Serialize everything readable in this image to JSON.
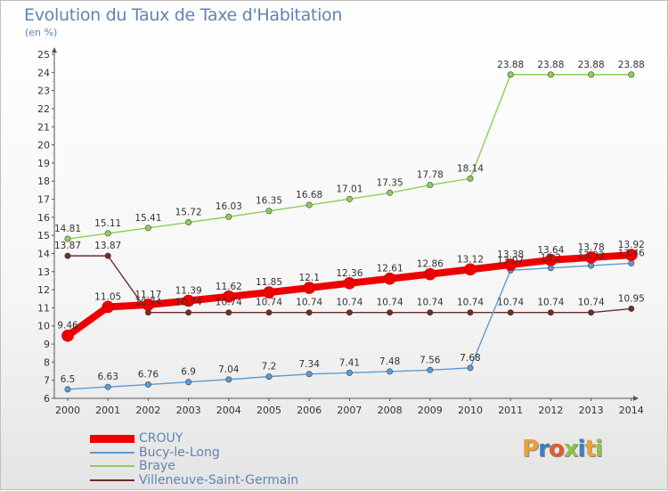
{
  "title": "Evolution du Taux de Taxe d'Habitation",
  "unit": "(en %)",
  "logo": {
    "text": "Proxiti",
    "colors": [
      "#e8a13a",
      "#3a7ec6",
      "#e85a2a",
      "#8bc34a",
      "#3a7ec6",
      "#e8a13a",
      "#8bc34a"
    ]
  },
  "chart_data": {
    "type": "line",
    "title": "Evolution du Taux de Taxe d'Habitation",
    "ylabel": "(en %)",
    "ylim": [
      6,
      25
    ],
    "yticks": [
      6,
      7,
      8,
      9,
      10,
      11,
      12,
      13,
      14,
      15,
      16,
      17,
      18,
      19,
      20,
      21,
      22,
      23,
      24,
      25
    ],
    "x": [
      "2000",
      "2001",
      "2002",
      "2003",
      "2004",
      "2005",
      "2006",
      "2007",
      "2008",
      "2009",
      "2010",
      "2011",
      "2012",
      "2013",
      "2014"
    ],
    "grid": false,
    "legend_position": "bottom-left",
    "series": [
      {
        "name": "CROUY",
        "color": "#ee0000",
        "values": [
          9.46,
          11.05,
          11.17,
          11.39,
          11.62,
          11.85,
          12.1,
          12.36,
          12.61,
          12.86,
          13.12,
          13.38,
          13.64,
          13.78,
          13.92
        ]
      },
      {
        "name": "Bucy-le-Long",
        "color": "#5d9bd3",
        "values": [
          6.5,
          6.63,
          6.76,
          6.9,
          7.04,
          7.2,
          7.34,
          7.41,
          7.48,
          7.56,
          7.68,
          13.07,
          13.2,
          13.33,
          13.46
        ]
      },
      {
        "name": "Braye",
        "color": "#8fce58",
        "values": [
          14.81,
          15.11,
          15.41,
          15.72,
          16.03,
          16.35,
          16.68,
          17.01,
          17.35,
          17.78,
          18.14,
          23.88,
          23.88,
          23.88,
          23.88
        ]
      },
      {
        "name": "Villeneuve-Saint-Germain",
        "color": "#6e2c2c",
        "values": [
          13.87,
          13.87,
          10.74,
          10.74,
          10.74,
          10.74,
          10.74,
          10.74,
          10.74,
          10.74,
          10.74,
          10.74,
          10.74,
          10.74,
          10.95
        ]
      }
    ]
  }
}
